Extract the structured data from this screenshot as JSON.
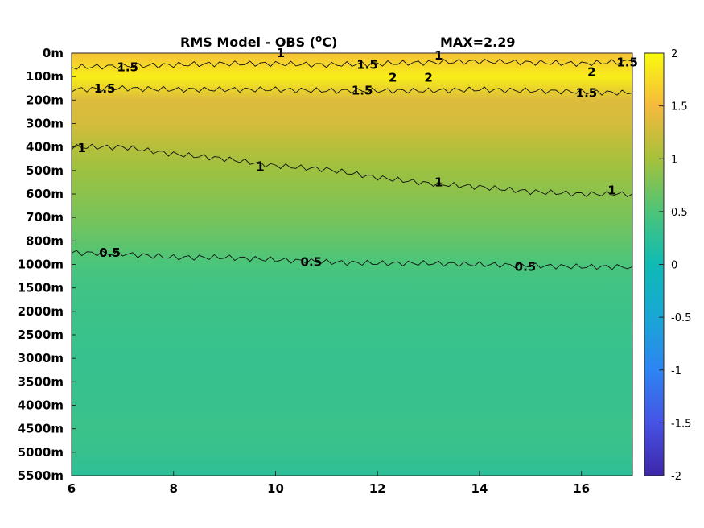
{
  "chart_data": {
    "type": "heatmap",
    "title": "RMS Model - OBS (",
    "title_super": "o",
    "title_unit": "C)",
    "max_label": "MAX=2.29",
    "x_ticks": [
      "6",
      "8",
      "10",
      "12",
      "14",
      "16"
    ],
    "x_values": [
      6,
      8,
      10,
      12,
      14,
      16
    ],
    "xlim": [
      6,
      17
    ],
    "y_ticks": [
      "0m",
      "100m",
      "200m",
      "300m",
      "400m",
      "500m",
      "600m",
      "700m",
      "800m",
      "1000m",
      "1500m",
      "2000m",
      "2500m",
      "3000m",
      "3500m",
      "4000m",
      "4500m",
      "5000m",
      "5500m"
    ],
    "colorbar": {
      "ticks": [
        "2",
        "1.5",
        "1",
        "0.5",
        "0",
        "-0.5",
        "-1",
        "-1.5",
        "-2"
      ],
      "tick_values": [
        2,
        1.5,
        1,
        0.5,
        0,
        -0.5,
        -1,
        -1.5,
        -2
      ],
      "range": [
        -2,
        2
      ],
      "colormap": "parula"
    },
    "depth_profile": [
      {
        "level": "0m",
        "value": 1.55
      },
      {
        "level": "100m",
        "value": 1.9
      },
      {
        "level": "200m",
        "value": 1.35
      },
      {
        "level": "300m",
        "value": 1.3
      },
      {
        "level": "400m",
        "value": 1.1
      },
      {
        "level": "500m",
        "value": 0.95
      },
      {
        "level": "600m",
        "value": 0.85
      },
      {
        "level": "700m",
        "value": 0.75
      },
      {
        "level": "800m",
        "value": 0.62
      },
      {
        "level": "1000m",
        "value": 0.48
      },
      {
        "level": "1500m",
        "value": 0.4
      },
      {
        "level": "2000m",
        "value": 0.37
      },
      {
        "level": "2500m",
        "value": 0.35
      },
      {
        "level": "3000m",
        "value": 0.32
      },
      {
        "level": "3500m",
        "value": 0.33
      },
      {
        "level": "4000m",
        "value": 0.34
      },
      {
        "level": "4500m",
        "value": 0.36
      },
      {
        "level": "5000m",
        "value": 0.33
      },
      {
        "level": "5500m",
        "value": 0.24
      }
    ],
    "contour_labels": [
      {
        "text": "1",
        "x": 10.1,
        "depth_index": 0.0
      },
      {
        "text": "1.5",
        "x": 7.1,
        "depth_index": 0.6
      },
      {
        "text": "1.5",
        "x": 11.8,
        "depth_index": 0.5
      },
      {
        "text": "1",
        "x": 13.2,
        "depth_index": 0.1
      },
      {
        "text": "1.5",
        "x": 16.9,
        "depth_index": 0.4
      },
      {
        "text": "2",
        "x": 12.3,
        "depth_index": 1.05
      },
      {
        "text": "2",
        "x": 13.0,
        "depth_index": 1.05
      },
      {
        "text": "2",
        "x": 16.2,
        "depth_index": 0.8
      },
      {
        "text": "1.5",
        "x": 6.65,
        "depth_index": 1.5
      },
      {
        "text": "1.5",
        "x": 11.7,
        "depth_index": 1.6
      },
      {
        "text": "1.5",
        "x": 16.1,
        "depth_index": 1.7
      },
      {
        "text": "1",
        "x": 6.2,
        "depth_index": 4.05
      },
      {
        "text": "1",
        "x": 9.7,
        "depth_index": 4.85
      },
      {
        "text": "1",
        "x": 13.2,
        "depth_index": 5.5
      },
      {
        "text": "1",
        "x": 16.6,
        "depth_index": 5.85
      },
      {
        "text": "0.5",
        "x": 6.75,
        "depth_index": 8.5
      },
      {
        "text": "0.5",
        "x": 10.7,
        "depth_index": 8.9
      },
      {
        "text": "0.5",
        "x": 14.9,
        "depth_index": 9.1
      }
    ],
    "contour_lines": [
      {
        "level": 1.5,
        "points": [
          [
            6,
            0.6
          ],
          [
            7,
            0.55
          ],
          [
            8,
            0.5
          ],
          [
            9,
            0.45
          ],
          [
            10,
            0.45
          ],
          [
            11,
            0.5
          ],
          [
            12,
            0.45
          ],
          [
            13,
            0.4
          ],
          [
            14,
            0.35
          ],
          [
            15,
            0.4
          ],
          [
            16,
            0.45
          ],
          [
            17,
            0.35
          ]
        ]
      },
      {
        "level": 1.5,
        "points": [
          [
            6,
            1.55
          ],
          [
            7,
            1.5
          ],
          [
            8,
            1.55
          ],
          [
            9,
            1.55
          ],
          [
            10,
            1.55
          ],
          [
            11,
            1.6
          ],
          [
            12,
            1.6
          ],
          [
            13,
            1.6
          ],
          [
            14,
            1.55
          ],
          [
            15,
            1.6
          ],
          [
            16,
            1.65
          ],
          [
            17,
            1.7
          ]
        ]
      },
      {
        "level": 1,
        "points": [
          [
            6,
            4.0
          ],
          [
            7,
            4.0
          ],
          [
            8,
            4.3
          ],
          [
            9,
            4.5
          ],
          [
            10,
            4.8
          ],
          [
            11,
            4.95
          ],
          [
            12,
            5.3
          ],
          [
            13,
            5.55
          ],
          [
            14,
            5.7
          ],
          [
            15,
            5.9
          ],
          [
            16,
            6.0
          ],
          [
            17,
            6.0
          ]
        ]
      },
      {
        "level": 0.5,
        "points": [
          [
            6,
            8.5
          ],
          [
            7,
            8.55
          ],
          [
            8,
            8.7
          ],
          [
            9,
            8.7
          ],
          [
            10,
            8.8
          ],
          [
            11,
            8.9
          ],
          [
            12,
            8.95
          ],
          [
            13,
            8.95
          ],
          [
            14,
            9.0
          ],
          [
            15,
            9.05
          ],
          [
            16,
            9.1
          ],
          [
            17,
            9.1
          ]
        ]
      }
    ],
    "grid": false
  }
}
